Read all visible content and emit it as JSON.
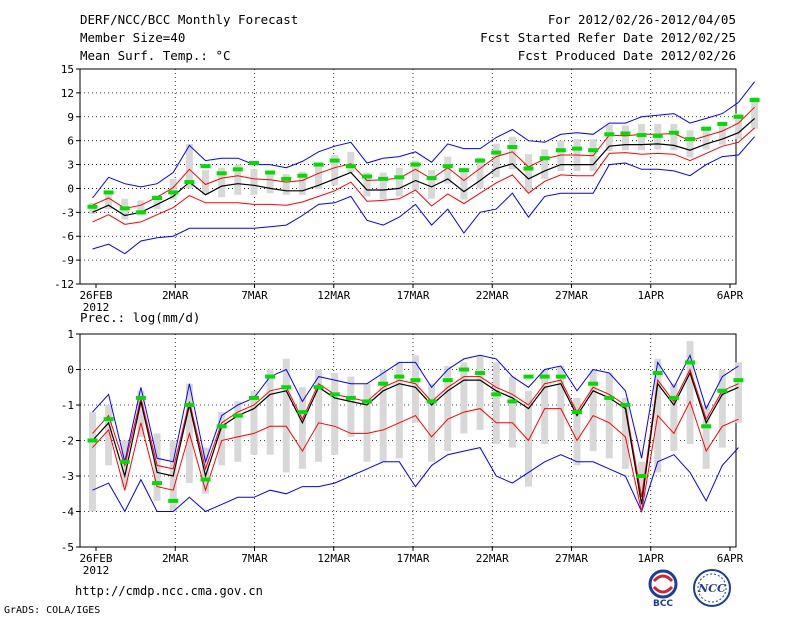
{
  "header": {
    "title": "DERF/NCC/BCC Monthly Forecast",
    "member_size": "Member Size=40",
    "variable": "Mean Surf. Temp.: °C",
    "forecast_period": "For 2012/02/26-2012/04/05",
    "refer_date": "Fcst Started Refer Date 2012/02/25",
    "produced_date": "Fcst Produced Date 2012/02/26"
  },
  "footer": {
    "url": "http://cmdp.ncc.cma.gov.cn",
    "credit": "GrADS: COLA/IGES",
    "logo_bcc_label": "BCC",
    "logo_ncc_label": "NCC"
  },
  "colors": {
    "ensemble_mean": "#000000",
    "observed_or_median": "#00dd00",
    "spread_band": "#ff0000",
    "extreme_range": "#0000ff",
    "box": "#d8d8d8",
    "grid": "#000000"
  },
  "chart_data": [
    {
      "type": "line",
      "title": "Mean Surf. Temp.: °C",
      "x_day_count": 40,
      "x_tick_labels": [
        "26FEB",
        "2MAR",
        "7MAR",
        "12MAR",
        "17MAR",
        "22MAR",
        "27MAR",
        "1APR",
        "6APR"
      ],
      "x_tick_days": [
        0,
        5,
        10,
        15,
        20,
        25,
        30,
        35,
        40
      ],
      "x_sub_label": "2012",
      "ylim": [
        -12,
        15
      ],
      "y_ticks": [
        -12,
        -9,
        -6,
        -3,
        0,
        3,
        6,
        9,
        12,
        15
      ],
      "grid": true,
      "series": [
        {
          "name": "mean",
          "color": "#000000",
          "values": [
            -3.0,
            -2.1,
            -3.4,
            -3.0,
            -2.0,
            -1.0,
            0.8,
            -0.8,
            0.3,
            0.6,
            0.4,
            0.0,
            -0.3,
            -0.3,
            0.4,
            1.2,
            2.0,
            -0.2,
            -0.2,
            0.0,
            1.0,
            0.2,
            1.2,
            -0.4,
            1.0,
            2.5,
            3.1,
            1.2,
            2.2,
            3.0,
            3.0,
            3.0,
            5.3,
            5.5,
            5.5,
            5.6,
            5.4,
            4.8,
            5.6,
            6.2,
            7.0,
            8.8
          ]
        },
        {
          "name": "upper_band",
          "color": "#ff0000",
          "values": [
            -2.1,
            -1.2,
            -2.5,
            -2.1,
            -1.1,
            0.1,
            2.4,
            0.5,
            1.3,
            1.6,
            1.2,
            1.1,
            0.8,
            1.0,
            1.9,
            2.6,
            3.1,
            1.0,
            1.1,
            1.3,
            2.4,
            1.2,
            2.6,
            1.0,
            2.5,
            4.0,
            4.6,
            2.7,
            3.7,
            4.2,
            4.2,
            4.1,
            6.7,
            6.6,
            6.8,
            6.8,
            6.9,
            6.0,
            6.6,
            7.2,
            8.2,
            10.2
          ]
        },
        {
          "name": "lower_band",
          "color": "#ff0000",
          "values": [
            -4.2,
            -3.3,
            -4.5,
            -4.2,
            -3.3,
            -2.4,
            -0.9,
            -1.8,
            -1.8,
            -1.8,
            -2.0,
            -2.0,
            -2.1,
            -1.7,
            -1.0,
            -0.3,
            0.8,
            -1.6,
            -1.5,
            -1.3,
            -0.2,
            -2.2,
            -0.7,
            -1.9,
            -0.6,
            0.7,
            1.7,
            -0.6,
            0.9,
            1.7,
            1.6,
            1.6,
            4.4,
            4.5,
            4.3,
            4.4,
            4.3,
            3.5,
            4.4,
            5.3,
            5.8,
            7.6
          ]
        },
        {
          "name": "max",
          "color": "#0000ff",
          "values": [
            -1.2,
            1.4,
            0.6,
            0.2,
            0.6,
            2.0,
            5.4,
            3.5,
            3.8,
            3.8,
            3.0,
            3.0,
            2.6,
            3.4,
            4.6,
            5.3,
            5.8,
            3.2,
            3.8,
            4.0,
            4.6,
            3.3,
            5.6,
            5.0,
            5.0,
            6.4,
            7.4,
            6.0,
            5.8,
            6.8,
            7.0,
            6.8,
            8.2,
            8.2,
            9.0,
            9.2,
            9.4,
            8.2,
            8.8,
            9.4,
            10.8,
            13.4
          ]
        },
        {
          "name": "min",
          "color": "#0000ff",
          "values": [
            -7.6,
            -7.0,
            -8.2,
            -6.6,
            -6.2,
            -6.0,
            -5.0,
            -5.0,
            -5.0,
            -5.0,
            -5.0,
            -4.8,
            -4.6,
            -3.4,
            -2.0,
            -1.8,
            -1.0,
            -4.0,
            -4.6,
            -3.6,
            -2.0,
            -4.6,
            -2.6,
            -5.6,
            -3.0,
            -2.6,
            -0.6,
            -3.6,
            -1.0,
            -0.6,
            -0.6,
            -0.6,
            3.0,
            3.2,
            2.4,
            2.4,
            2.2,
            1.6,
            3.0,
            4.0,
            4.2,
            6.5
          ]
        },
        {
          "name": "box_top",
          "color": "#d8d8d8",
          "values": [
            -1.8,
            -0.3,
            -1.3,
            -1.5,
            -0.8,
            1.2,
            5.6,
            2.3,
            2.6,
            3.0,
            2.4,
            2.0,
            1.8,
            2.1,
            2.8,
            4.2,
            4.6,
            2.0,
            2.0,
            2.6,
            3.5,
            2.3,
            4.0,
            2.1,
            3.9,
            5.6,
            6.5,
            4.3,
            4.9,
            6.0,
            6.2,
            6.2,
            8.0,
            7.9,
            8.1,
            8.1,
            8.1,
            7.3,
            7.8,
            8.3,
            9.4,
            11.5
          ]
        },
        {
          "name": "box_bottom",
          "color": "#d8d8d8",
          "values": [
            -3.2,
            -2.6,
            -3.9,
            -3.4,
            -2.6,
            -1.4,
            0.0,
            -0.8,
            -1.1,
            -0.8,
            -0.8,
            -0.6,
            -0.8,
            -0.8,
            -0.1,
            0.4,
            2.0,
            -1.0,
            -1.4,
            -1.0,
            -0.2,
            -1.3,
            0.6,
            -1.4,
            0.0,
            1.4,
            2.4,
            -0.5,
            1.2,
            2.2,
            2.2,
            2.2,
            4.7,
            4.8,
            4.8,
            4.9,
            4.8,
            3.9,
            4.9,
            5.5,
            6.2,
            7.5
          ]
        },
        {
          "name": "median_marker",
          "color": "#00dd00",
          "values": [
            -2.3,
            -0.5,
            -2.5,
            -3.0,
            -1.2,
            -0.5,
            0.8,
            2.8,
            1.9,
            2.4,
            3.2,
            2.0,
            1.2,
            1.6,
            3.0,
            3.5,
            2.8,
            1.5,
            1.2,
            1.4,
            3.0,
            1.3,
            2.8,
            2.3,
            3.5,
            4.5,
            5.2,
            2.5,
            3.8,
            4.8,
            5.0,
            4.8,
            6.8,
            6.9,
            6.7,
            6.6,
            7.0,
            6.2,
            7.5,
            8.1,
            9.0,
            11.1
          ]
        }
      ]
    },
    {
      "type": "line",
      "title": "Prec.: log(mm/d)",
      "x_day_count": 40,
      "x_tick_labels": [
        "26FEB",
        "2MAR",
        "7MAR",
        "12MAR",
        "17MAR",
        "22MAR",
        "27MAR",
        "1APR",
        "6APR"
      ],
      "x_tick_days": [
        0,
        5,
        10,
        15,
        20,
        25,
        30,
        35,
        40
      ],
      "x_sub_label": "2012",
      "ylim": [
        -5,
        1
      ],
      "y_ticks": [
        -5,
        -4,
        -3,
        -2,
        -1,
        0,
        1
      ],
      "grid": true,
      "series": [
        {
          "name": "mean",
          "color": "#000000",
          "values": [
            -2.0,
            -1.5,
            -3.0,
            -0.9,
            -2.9,
            -3.0,
            -1.0,
            -3.0,
            -1.6,
            -1.3,
            -1.1,
            -0.7,
            -0.6,
            -1.5,
            -0.5,
            -0.8,
            -0.9,
            -1.0,
            -0.6,
            -0.4,
            -0.5,
            -1.0,
            -0.6,
            -0.3,
            -0.3,
            -0.6,
            -0.8,
            -1.1,
            -0.5,
            -0.4,
            -1.3,
            -0.6,
            -0.8,
            -1.1,
            -3.8,
            -0.4,
            -1.0,
            -0.1,
            -1.5,
            -0.7,
            -0.5
          ]
        },
        {
          "name": "upper_band",
          "color": "#ff0000",
          "values": [
            -1.8,
            -1.3,
            -2.7,
            -0.8,
            -2.7,
            -2.8,
            -0.9,
            -2.8,
            -1.5,
            -1.2,
            -1.0,
            -0.6,
            -0.5,
            -1.4,
            -0.4,
            -0.7,
            -0.8,
            -0.9,
            -0.5,
            -0.3,
            -0.4,
            -0.9,
            -0.5,
            -0.2,
            -0.2,
            -0.5,
            -0.7,
            -1.0,
            -0.4,
            -0.3,
            -1.2,
            -0.5,
            -0.7,
            -1.0,
            -3.6,
            -0.3,
            -0.9,
            0.0,
            -1.4,
            -0.6,
            -0.4
          ]
        },
        {
          "name": "lower_band",
          "color": "#ff0000",
          "values": [
            -2.2,
            -1.7,
            -3.4,
            -1.5,
            -3.3,
            -3.4,
            -1.8,
            -3.4,
            -2.0,
            -1.9,
            -1.8,
            -1.6,
            -1.6,
            -2.3,
            -1.5,
            -1.6,
            -1.8,
            -1.8,
            -1.7,
            -1.5,
            -1.3,
            -1.9,
            -1.4,
            -1.2,
            -1.1,
            -1.5,
            -1.5,
            -2.0,
            -1.1,
            -1.1,
            -2.0,
            -1.3,
            -1.5,
            -1.9,
            -4.0,
            -1.3,
            -1.8,
            -0.9,
            -2.3,
            -1.6,
            -1.4
          ]
        },
        {
          "name": "max",
          "color": "#0000ff",
          "values": [
            -1.2,
            -0.7,
            -2.6,
            -0.5,
            -2.5,
            -2.6,
            -0.4,
            -2.6,
            -1.3,
            -1.0,
            -0.8,
            -0.2,
            0.0,
            -0.9,
            -0.2,
            -0.3,
            -0.4,
            -0.4,
            -0.1,
            0.2,
            0.2,
            -0.5,
            0.0,
            0.3,
            0.4,
            0.3,
            -0.2,
            -0.5,
            0.0,
            0.1,
            -0.6,
            0.0,
            -0.1,
            -0.6,
            -2.5,
            0.2,
            -0.5,
            0.4,
            -1.1,
            -0.2,
            0.1
          ]
        },
        {
          "name": "min",
          "color": "#0000ff",
          "values": [
            -3.4,
            -3.2,
            -4.0,
            -3.1,
            -4.0,
            -4.0,
            -3.6,
            -4.0,
            -3.8,
            -3.6,
            -3.6,
            -3.4,
            -3.5,
            -3.3,
            -3.3,
            -3.2,
            -3.0,
            -2.8,
            -2.6,
            -2.6,
            -3.3,
            -2.7,
            -2.4,
            -2.3,
            -2.2,
            -3.0,
            -3.2,
            -2.9,
            -2.6,
            -2.4,
            -2.6,
            -2.6,
            -2.8,
            -3.0,
            -4.0,
            -2.6,
            -2.4,
            -2.9,
            -3.7,
            -2.7,
            -2.2
          ]
        },
        {
          "name": "box_top",
          "color": "#d8d8d8",
          "values": [
            -1.2,
            -1.0,
            -2.0,
            -0.6,
            -1.8,
            -2.0,
            -0.4,
            -2.2,
            -1.2,
            -0.9,
            -0.6,
            0.0,
            0.3,
            -0.5,
            0.0,
            -0.1,
            -0.2,
            -0.4,
            0.0,
            0.2,
            0.4,
            -0.4,
            0.1,
            0.2,
            0.4,
            0.2,
            -0.2,
            -0.6,
            0.0,
            0.1,
            -0.8,
            0.0,
            -0.1,
            -0.8,
            -2.6,
            0.3,
            -0.4,
            0.8,
            -1.0,
            0.0,
            0.2
          ]
        },
        {
          "name": "box_bottom",
          "color": "#d8d8d8",
          "values": [
            -4.0,
            -2.7,
            -3.3,
            -1.9,
            -3.7,
            -4.0,
            -3.2,
            -3.5,
            -2.7,
            -2.6,
            -2.4,
            -2.4,
            -2.9,
            -2.8,
            -2.6,
            -2.4,
            -1.9,
            -2.6,
            -2.6,
            -2.5,
            -1.5,
            -2.6,
            -2.3,
            -1.8,
            -1.7,
            -2.1,
            -2.2,
            -3.3,
            -2.1,
            -2.0,
            -2.7,
            -2.3,
            -2.5,
            -2.8,
            -3.6,
            -2.9,
            -2.3,
            -2.1,
            -2.8,
            -2.2,
            -1.5
          ]
        },
        {
          "name": "median_marker",
          "color": "#00dd00",
          "values": [
            -2.0,
            -1.4,
            -2.6,
            -0.8,
            -3.2,
            -3.7,
            -1.0,
            -3.1,
            -1.6,
            -1.3,
            -0.8,
            -0.2,
            -0.5,
            -1.2,
            -0.5,
            -0.7,
            -0.8,
            -0.9,
            -0.4,
            -0.2,
            -0.3,
            -0.9,
            -0.3,
            0.0,
            -0.1,
            -0.7,
            -0.9,
            -0.2,
            -0.2,
            -0.2,
            -1.2,
            -0.4,
            -0.8,
            -1.0,
            -3.0,
            -0.1,
            -0.8,
            0.2,
            -1.6,
            -0.6,
            -0.3
          ]
        }
      ]
    }
  ]
}
